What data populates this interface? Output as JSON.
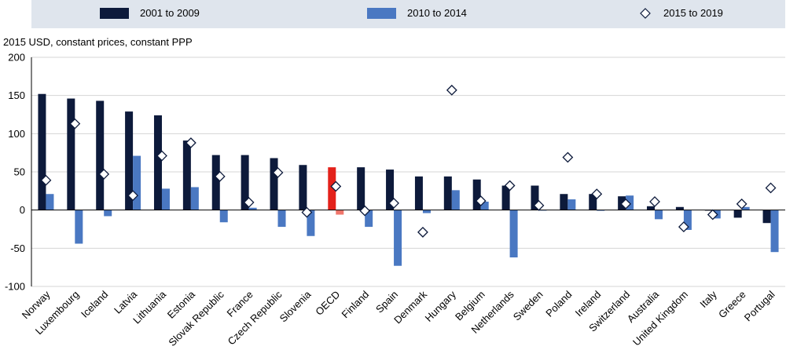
{
  "legend": {
    "items": [
      {
        "label": "2001 to 2009",
        "color": "#0d1a3b",
        "shape": "bar"
      },
      {
        "label": "2010 to 2014",
        "color": "#4a78c2",
        "shape": "bar"
      },
      {
        "label": "2015 to 2019",
        "color": "#ffffff",
        "shape": "diamond"
      }
    ]
  },
  "unit_label": "2015 USD, constant prices, constant PPP",
  "chart_data": {
    "type": "bar",
    "ylabel": "2015 USD, constant prices, constant PPP",
    "ylim": [
      -100,
      200
    ],
    "yticks": [
      -100,
      -50,
      0,
      50,
      100,
      150,
      200
    ],
    "highlight_category": "OECD",
    "highlight_colors": {
      "2001 to 2009": "#e3211a",
      "2010 to 2014": "#f0766b"
    },
    "categories": [
      "Norway",
      "Luxembourg",
      "Iceland",
      "Latvia",
      "Lithuania",
      "Estonia",
      "Slovak Republic",
      "France",
      "Czech Republic",
      "Slovenia",
      "OECD",
      "Finland",
      "Spain",
      "Denmark",
      "Hungary",
      "Belgium",
      "Netherlands",
      "Sweden",
      "Poland",
      "Ireland",
      "Switzerland",
      "Australia",
      "United Kingdom",
      "Italy",
      "Greece",
      "Portugal"
    ],
    "series": [
      {
        "name": "2001 to 2009",
        "type": "bar",
        "color": "#0d1a3b",
        "values": [
          152,
          146,
          143,
          129,
          124,
          91,
          72,
          72,
          68,
          59,
          56,
          56,
          53,
          44,
          44,
          40,
          32,
          32,
          21,
          21,
          18,
          5,
          4,
          0,
          -10,
          -17
        ]
      },
      {
        "name": "2010 to 2014",
        "type": "bar",
        "color": "#4a78c2",
        "values": [
          21,
          -44,
          -8,
          71,
          28,
          30,
          -16,
          3,
          -22,
          -34,
          -6,
          -22,
          -73,
          -4,
          26,
          11,
          -62,
          0,
          14,
          -1,
          19,
          -12,
          -26,
          -11,
          4,
          -55
        ]
      },
      {
        "name": "2015 to 2019",
        "type": "marker",
        "color": "#ffffff",
        "values": [
          39,
          113,
          47,
          19,
          71,
          88,
          44,
          10,
          49,
          -3,
          31,
          -1,
          9,
          -29,
          157,
          12,
          32,
          6,
          69,
          21,
          8,
          11,
          -22,
          -6,
          8,
          29
        ]
      }
    ]
  }
}
